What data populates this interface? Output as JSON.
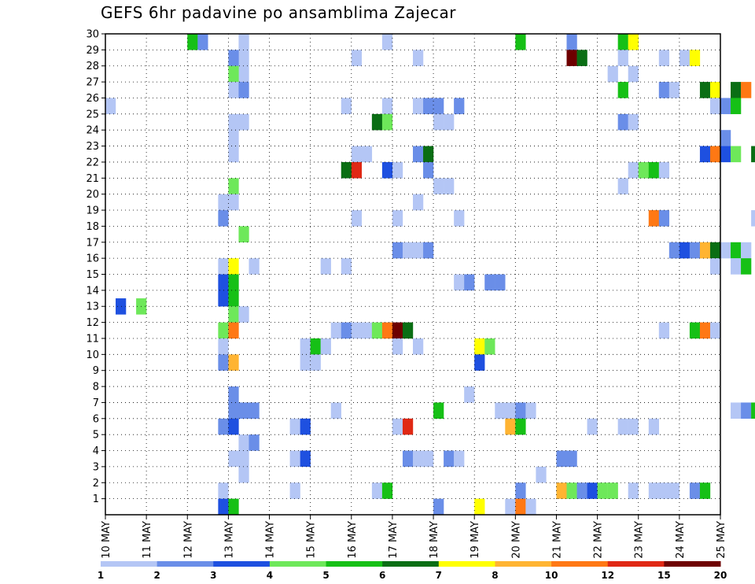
{
  "title": "GEFS 6hr padavine po ansamblima Zajecar",
  "chart_data": {
    "type": "heatmap",
    "title": "GEFS 6hr padavine po ansamblima Zajecar",
    "y_ticks": [
      "1",
      "2",
      "3",
      "4",
      "5",
      "6",
      "7",
      "8",
      "9",
      "10",
      "11",
      "12",
      "13",
      "14",
      "15",
      "16",
      "17",
      "18",
      "19",
      "20",
      "21",
      "22",
      "23",
      "24",
      "25",
      "26",
      "27",
      "28",
      "29",
      "30"
    ],
    "x_ticks": [
      "10 MAY",
      "11 MAY",
      "12 MAY",
      "13 MAY",
      "14 MAY",
      "15 MAY",
      "16 MAY",
      "17 MAY",
      "18 MAY",
      "19 MAY",
      "20 MAY",
      "21 MAY",
      "22 MAY",
      "23 MAY",
      "24 MAY",
      "25 MAY"
    ],
    "x_range": [
      "10 MAY",
      "25 MAY"
    ],
    "y_range": [
      0,
      30
    ],
    "grid": true,
    "colorbar_labels": [
      "1",
      "2",
      "3",
      "4",
      "5",
      "6",
      "7",
      "8",
      "10",
      "12",
      "15",
      "20"
    ],
    "colorbar_colors": [
      "#b4c6f5",
      "#6a8ee8",
      "#1e50e0",
      "#6ee85a",
      "#16c016",
      "#0a6e14",
      "#ffff00",
      "#ffb432",
      "#ff7814",
      "#e02814",
      "#6e0000"
    ],
    "level_note": "cell value = colour-bin index 1..11 (bins: 1-2,2-3,3-4,4-5,5-6,6-7,7-8,8-10,10-12,12-15,15-20)",
    "cells": [
      [
        1,
        13.0,
        3
      ],
      [
        3,
        13.0,
        4
      ],
      [
        13,
        29.5,
        1
      ],
      [
        13,
        28.5,
        1
      ],
      [
        13,
        27.5,
        1
      ],
      [
        27,
        29.5,
        1
      ],
      [
        27,
        25.5,
        1
      ],
      [
        8,
        29.5,
        5
      ],
      [
        9,
        29.5,
        2
      ],
      [
        40,
        29.5,
        5
      ],
      [
        45,
        29.5,
        2
      ],
      [
        50,
        29.5,
        5
      ],
      [
        51,
        29.5,
        7
      ],
      [
        12,
        28.5,
        2
      ],
      [
        12,
        27.5,
        4
      ],
      [
        12,
        26.5,
        1
      ],
      [
        13,
        26.5,
        2
      ],
      [
        24,
        28.5,
        1
      ],
      [
        30,
        28.5,
        1
      ],
      [
        45,
        28.5,
        11
      ],
      [
        46,
        28.5,
        6
      ],
      [
        50,
        28.5,
        1
      ],
      [
        54,
        28.5,
        1
      ],
      [
        56,
        28.5,
        1
      ],
      [
        57,
        28.5,
        7
      ],
      [
        49,
        27.5,
        1
      ],
      [
        51,
        27.5,
        1
      ],
      [
        50,
        26.5,
        5
      ],
      [
        54,
        26.5,
        2
      ],
      [
        55,
        26.5,
        1
      ],
      [
        58,
        26.5,
        6
      ],
      [
        59,
        26.5,
        7
      ],
      [
        61,
        26.5,
        6
      ],
      [
        62,
        26.5,
        9
      ],
      [
        0,
        25.5,
        1
      ],
      [
        23,
        25.5,
        1
      ],
      [
        30,
        25.5,
        1
      ],
      [
        31,
        25.5,
        2
      ],
      [
        32,
        25.5,
        2
      ],
      [
        34,
        25.5,
        2
      ],
      [
        59,
        25.5,
        1
      ],
      [
        60,
        25.5,
        2
      ],
      [
        61,
        25.5,
        5
      ],
      [
        64,
        25.5,
        1
      ],
      [
        12,
        24.5,
        1
      ],
      [
        13,
        24.5,
        1
      ],
      [
        26,
        24.5,
        6
      ],
      [
        27,
        24.5,
        4
      ],
      [
        32,
        24.5,
        1
      ],
      [
        33,
        24.5,
        1
      ],
      [
        50,
        24.5,
        2
      ],
      [
        51,
        24.5,
        1
      ],
      [
        64,
        24.5,
        3
      ],
      [
        65,
        24.5,
        1
      ],
      [
        67,
        24.5,
        2
      ],
      [
        68,
        24.5,
        6
      ],
      [
        69,
        24.5,
        6
      ],
      [
        70,
        24.5,
        2
      ],
      [
        12,
        23.5,
        1
      ],
      [
        60,
        23.5,
        2
      ],
      [
        12,
        22.5,
        1
      ],
      [
        24,
        22.5,
        1
      ],
      [
        25,
        22.5,
        1
      ],
      [
        30,
        22.5,
        2
      ],
      [
        31,
        22.5,
        6
      ],
      [
        58,
        22.5,
        3
      ],
      [
        59,
        22.5,
        9
      ],
      [
        60,
        22.5,
        3
      ],
      [
        61,
        22.5,
        4
      ],
      [
        63,
        22.5,
        6
      ],
      [
        64,
        22.5,
        6
      ],
      [
        65,
        22.5,
        7
      ],
      [
        67,
        22.5,
        6
      ],
      [
        68,
        22.5,
        2
      ],
      [
        23,
        21.5,
        6
      ],
      [
        24,
        21.5,
        10
      ],
      [
        27,
        21.5,
        3
      ],
      [
        28,
        21.5,
        1
      ],
      [
        31,
        21.5,
        2
      ],
      [
        51,
        21.5,
        1
      ],
      [
        52,
        21.5,
        4
      ],
      [
        53,
        21.5,
        5
      ],
      [
        54,
        21.5,
        1
      ],
      [
        12,
        20.5,
        4
      ],
      [
        32,
        20.5,
        1
      ],
      [
        33,
        20.5,
        1
      ],
      [
        50,
        20.5,
        1
      ],
      [
        67,
        20.5,
        2
      ],
      [
        71,
        20.5,
        4
      ],
      [
        11,
        19.5,
        1
      ],
      [
        12,
        19.5,
        1
      ],
      [
        30,
        19.5,
        1
      ],
      [
        11,
        18.5,
        2
      ],
      [
        24,
        18.5,
        1
      ],
      [
        28,
        18.5,
        1
      ],
      [
        34,
        18.5,
        1
      ],
      [
        53,
        18.5,
        9
      ],
      [
        54,
        18.5,
        2
      ],
      [
        63,
        18.5,
        1
      ],
      [
        13,
        17.5,
        4
      ],
      [
        28,
        16.5,
        2
      ],
      [
        29,
        16.5,
        1
      ],
      [
        30,
        16.5,
        1
      ],
      [
        31,
        16.5,
        2
      ],
      [
        55,
        16.5,
        2
      ],
      [
        56,
        16.5,
        3
      ],
      [
        57,
        16.5,
        2
      ],
      [
        58,
        16.5,
        8
      ],
      [
        59,
        16.5,
        6
      ],
      [
        60,
        16.5,
        1
      ],
      [
        61,
        16.5,
        5
      ],
      [
        62,
        16.5,
        1
      ],
      [
        11,
        15.5,
        1
      ],
      [
        12,
        15.5,
        7
      ],
      [
        14,
        15.5,
        1
      ],
      [
        21,
        15.5,
        1
      ],
      [
        23,
        15.5,
        1
      ],
      [
        59,
        15.5,
        1
      ],
      [
        61,
        15.5,
        1
      ],
      [
        62,
        15.5,
        5
      ],
      [
        71,
        15.5,
        5
      ],
      [
        11,
        14.5,
        3
      ],
      [
        12,
        14.5,
        5
      ],
      [
        34,
        14.5,
        1
      ],
      [
        35,
        14.5,
        2
      ],
      [
        37,
        14.5,
        2
      ],
      [
        38,
        14.5,
        2
      ],
      [
        11,
        13.5,
        3
      ],
      [
        12,
        13.5,
        5
      ],
      [
        12,
        12.5,
        4
      ],
      [
        13,
        12.5,
        1
      ],
      [
        67,
        12.5,
        2
      ],
      [
        68,
        12.5,
        3
      ],
      [
        11,
        11.5,
        4
      ],
      [
        12,
        11.5,
        9
      ],
      [
        22,
        11.5,
        1
      ],
      [
        23,
        11.5,
        2
      ],
      [
        24,
        11.5,
        1
      ],
      [
        25,
        11.5,
        1
      ],
      [
        26,
        11.5,
        4
      ],
      [
        27,
        11.5,
        9
      ],
      [
        28,
        11.5,
        11
      ],
      [
        29,
        11.5,
        6
      ],
      [
        54,
        11.5,
        1
      ],
      [
        57,
        11.5,
        5
      ],
      [
        58,
        11.5,
        9
      ],
      [
        59,
        11.5,
        1
      ],
      [
        11,
        10.5,
        1
      ],
      [
        19,
        10.5,
        1
      ],
      [
        20,
        10.5,
        5
      ],
      [
        21,
        10.5,
        1
      ],
      [
        28,
        10.5,
        1
      ],
      [
        30,
        10.5,
        1
      ],
      [
        36,
        10.5,
        7
      ],
      [
        37,
        10.5,
        4
      ],
      [
        65,
        10.5,
        2
      ],
      [
        11,
        9.5,
        2
      ],
      [
        12,
        9.5,
        8
      ],
      [
        19,
        9.5,
        1
      ],
      [
        20,
        9.5,
        1
      ],
      [
        36,
        9.5,
        3
      ],
      [
        35,
        7.5,
        1
      ],
      [
        12,
        7.5,
        2
      ],
      [
        12,
        6.5,
        2
      ],
      [
        13,
        6.5,
        2
      ],
      [
        14,
        6.5,
        2
      ],
      [
        22,
        6.5,
        1
      ],
      [
        32,
        6.5,
        5
      ],
      [
        38,
        6.5,
        1
      ],
      [
        39,
        6.5,
        1
      ],
      [
        40,
        6.5,
        2
      ],
      [
        41,
        6.5,
        1
      ],
      [
        61,
        6.5,
        1
      ],
      [
        62,
        6.5,
        2
      ],
      [
        63,
        6.5,
        5
      ],
      [
        11,
        5.5,
        2
      ],
      [
        12,
        5.5,
        3
      ],
      [
        18,
        5.5,
        1
      ],
      [
        19,
        5.5,
        3
      ],
      [
        28,
        5.5,
        1
      ],
      [
        29,
        5.5,
        10
      ],
      [
        39,
        5.5,
        8
      ],
      [
        40,
        5.5,
        5
      ],
      [
        47,
        5.5,
        1
      ],
      [
        50,
        5.5,
        1
      ],
      [
        51,
        5.5,
        1
      ],
      [
        53,
        5.5,
        1
      ],
      [
        65,
        5.5,
        2
      ],
      [
        66,
        5.5,
        7
      ],
      [
        13,
        4.5,
        1
      ],
      [
        14,
        4.5,
        2
      ],
      [
        12,
        3.5,
        1
      ],
      [
        13,
        3.5,
        1
      ],
      [
        18,
        3.5,
        1
      ],
      [
        19,
        3.5,
        3
      ],
      [
        29,
        3.5,
        2
      ],
      [
        30,
        3.5,
        1
      ],
      [
        31,
        3.5,
        1
      ],
      [
        33,
        3.5,
        2
      ],
      [
        34,
        3.5,
        1
      ],
      [
        44,
        3.5,
        2
      ],
      [
        45,
        3.5,
        2
      ],
      [
        13,
        2.5,
        1
      ],
      [
        42,
        2.5,
        1
      ],
      [
        11,
        1.5,
        1
      ],
      [
        18,
        1.5,
        1
      ],
      [
        26,
        1.5,
        1
      ],
      [
        27,
        1.5,
        5
      ],
      [
        40,
        1.5,
        2
      ],
      [
        44,
        1.5,
        8
      ],
      [
        45,
        1.5,
        4
      ],
      [
        46,
        1.5,
        2
      ],
      [
        47,
        1.5,
        3
      ],
      [
        48,
        1.5,
        4
      ],
      [
        49,
        1.5,
        4
      ],
      [
        51,
        1.5,
        1
      ],
      [
        53,
        1.5,
        1
      ],
      [
        54,
        1.5,
        1
      ],
      [
        55,
        1.5,
        1
      ],
      [
        57,
        1.5,
        2
      ],
      [
        58,
        1.5,
        5
      ],
      [
        11,
        0.5,
        3
      ],
      [
        12,
        0.5,
        5
      ],
      [
        32,
        0.5,
        2
      ],
      [
        36,
        0.5,
        7
      ],
      [
        39,
        0.5,
        1
      ],
      [
        40,
        0.5,
        9
      ],
      [
        41,
        0.5,
        1
      ]
    ]
  }
}
